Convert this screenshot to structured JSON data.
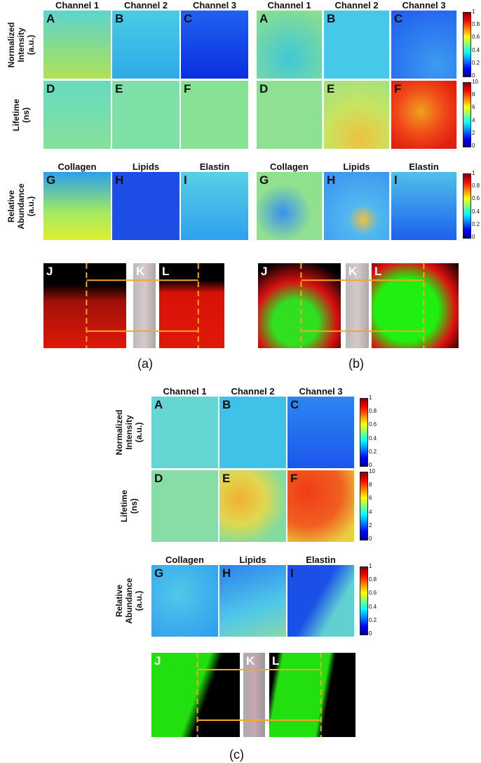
{
  "figures": [
    {
      "caption": "(a)",
      "columns": [
        "Channel 1",
        "Channel 2",
        "Channel 3"
      ],
      "rows": [
        {
          "label": [
            "Normalized",
            "Intensity",
            "(a.u.)"
          ],
          "panels": [
            "A",
            "B",
            "C"
          ]
        },
        {
          "label": [
            "Lifetime",
            "(ns)"
          ],
          "panels": [
            "D",
            "E",
            "F"
          ]
        }
      ],
      "abundance": {
        "label": [
          "Relative",
          "Abundance",
          "(a.u.)"
        ],
        "columns": [
          "Collagen",
          "Lipids",
          "Elastin"
        ],
        "panels": [
          "G",
          "H",
          "I"
        ]
      },
      "histology": [
        "J",
        "K",
        "L"
      ]
    },
    {
      "caption": "(b)",
      "columns": [
        "Channel 1",
        "Channel 2",
        "Channel 3"
      ],
      "rows": [
        {
          "panels": [
            "A",
            "B",
            "C"
          ],
          "colorbar": [
            1,
            0.8,
            0.6,
            0.4,
            0.2,
            0
          ]
        },
        {
          "panels": [
            "D",
            "E",
            "F"
          ],
          "colorbar": [
            10,
            8,
            6,
            4,
            2,
            0
          ]
        }
      ],
      "abundance": {
        "columns": [
          "Collagen",
          "Lipids",
          "Elastin"
        ],
        "panels": [
          "G",
          "H",
          "I"
        ],
        "colorbar": [
          1,
          0.8,
          0.6,
          0.4,
          0.2,
          0
        ]
      },
      "histology": [
        "J",
        "K",
        "L"
      ]
    },
    {
      "caption": "(c)",
      "columns": [
        "Channel 1",
        "Channel 2",
        "Channel 3"
      ],
      "rows": [
        {
          "label": [
            "Normalized",
            "Intensity",
            "(a.u.)"
          ],
          "panels": [
            "A",
            "B",
            "C"
          ],
          "colorbar": [
            1,
            0.8,
            0.6,
            0.4,
            0.2,
            0
          ]
        },
        {
          "label": [
            "Lifetime",
            "(ns)"
          ],
          "panels": [
            "D",
            "E",
            "F"
          ],
          "colorbar": [
            10,
            8,
            6,
            4,
            2,
            0
          ]
        }
      ],
      "abundance": {
        "label": [
          "Relative",
          "Abundance",
          "(a.u.)"
        ],
        "columns": [
          "Collagen",
          "Lipids",
          "Elastin"
        ],
        "panels": [
          "G",
          "H",
          "I"
        ],
        "colorbar": [
          1,
          0.8,
          0.6,
          0.4,
          0.2,
          0
        ]
      },
      "histology": [
        "J",
        "K",
        "L"
      ]
    }
  ]
}
